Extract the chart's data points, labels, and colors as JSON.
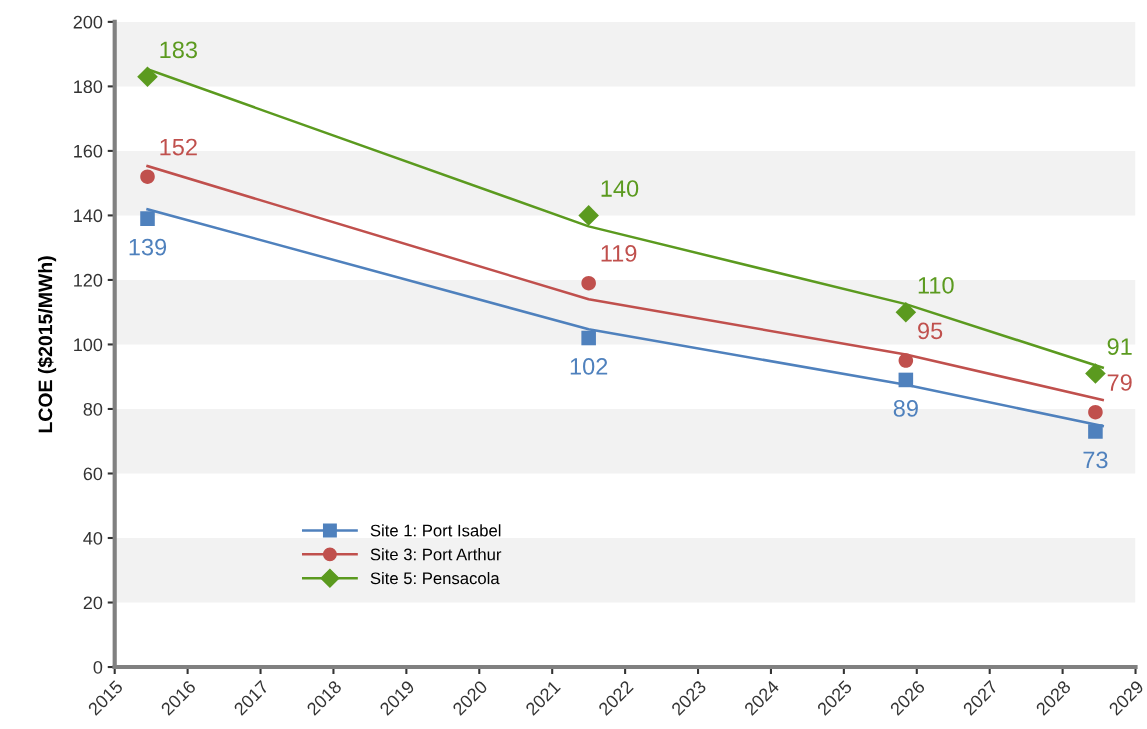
{
  "chart_data": {
    "type": "scatter",
    "ylabel": "LCOE ($2015/MWh)",
    "xlim": [
      2015,
      2029
    ],
    "xticks": [
      2015,
      2016,
      2017,
      2018,
      2019,
      2020,
      2021,
      2022,
      2023,
      2024,
      2025,
      2026,
      2027,
      2028,
      2029
    ],
    "ylim": [
      0,
      200
    ],
    "yticks": [
      0,
      20,
      40,
      60,
      80,
      100,
      120,
      140,
      160,
      180,
      200
    ],
    "grid": false,
    "legend": "bottom left",
    "bands": [
      {
        "axis": "y",
        "from": 20,
        "to": 40,
        "color": "#f2f2f2"
      },
      {
        "axis": "y",
        "from": 60,
        "to": 80,
        "color": "#f2f2f2"
      },
      {
        "axis": "y",
        "from": 100,
        "to": 120,
        "color": "#f2f2f2"
      },
      {
        "axis": "y",
        "from": 140,
        "to": 160,
        "color": "#f2f2f2"
      },
      {
        "axis": "y",
        "from": 180,
        "to": 200,
        "color": "#f2f2f2"
      }
    ],
    "series": [
      {
        "name": "Site 1: Port Isabel",
        "marker": "square",
        "color": "#4f81bd",
        "x": [
          2015.45,
          2021.5,
          2025.85,
          2028.45
        ],
        "values": [
          139,
          102,
          89,
          73
        ],
        "value_labels": [
          "139",
          "102",
          "89",
          "73"
        ]
      },
      {
        "name": "Site 3: Port Arthur",
        "marker": "circle",
        "color": "#c0504d",
        "x": [
          2015.45,
          2021.5,
          2025.85,
          2028.45
        ],
        "values": [
          152,
          119,
          95,
          79
        ],
        "value_labels": [
          "152",
          "119",
          "95",
          "79"
        ]
      },
      {
        "name": "Site 5: Pensacola",
        "marker": "diamond",
        "color": "#5b9a1f",
        "x": [
          2015.45,
          2021.5,
          2025.85,
          2028.45
        ],
        "values": [
          183,
          140,
          110,
          91
        ],
        "value_labels": [
          "183",
          "140",
          "110",
          "91"
        ]
      },
      {
        "type": "line",
        "marker": "none",
        "line_style": "solid",
        "color": "#4f81bd",
        "x": [
          2015.45,
          2021.5,
          2025.85,
          2028.55
        ],
        "values": [
          141.9,
          104.7,
          87.5,
          74.7
        ]
      },
      {
        "type": "line",
        "marker": "none",
        "line_style": "solid",
        "color": "#c0504d",
        "x": [
          2015.45,
          2021.5,
          2025.85,
          2028.55
        ],
        "values": [
          155.3,
          114,
          96.9,
          82.8
        ]
      },
      {
        "type": "line",
        "marker": "none",
        "line_style": "solid",
        "color": "#5b9a1f",
        "x": [
          2015.45,
          2021.5,
          2025.85,
          2028.55
        ],
        "values": [
          185.3,
          136.6,
          112.5,
          92.8
        ]
      }
    ]
  }
}
